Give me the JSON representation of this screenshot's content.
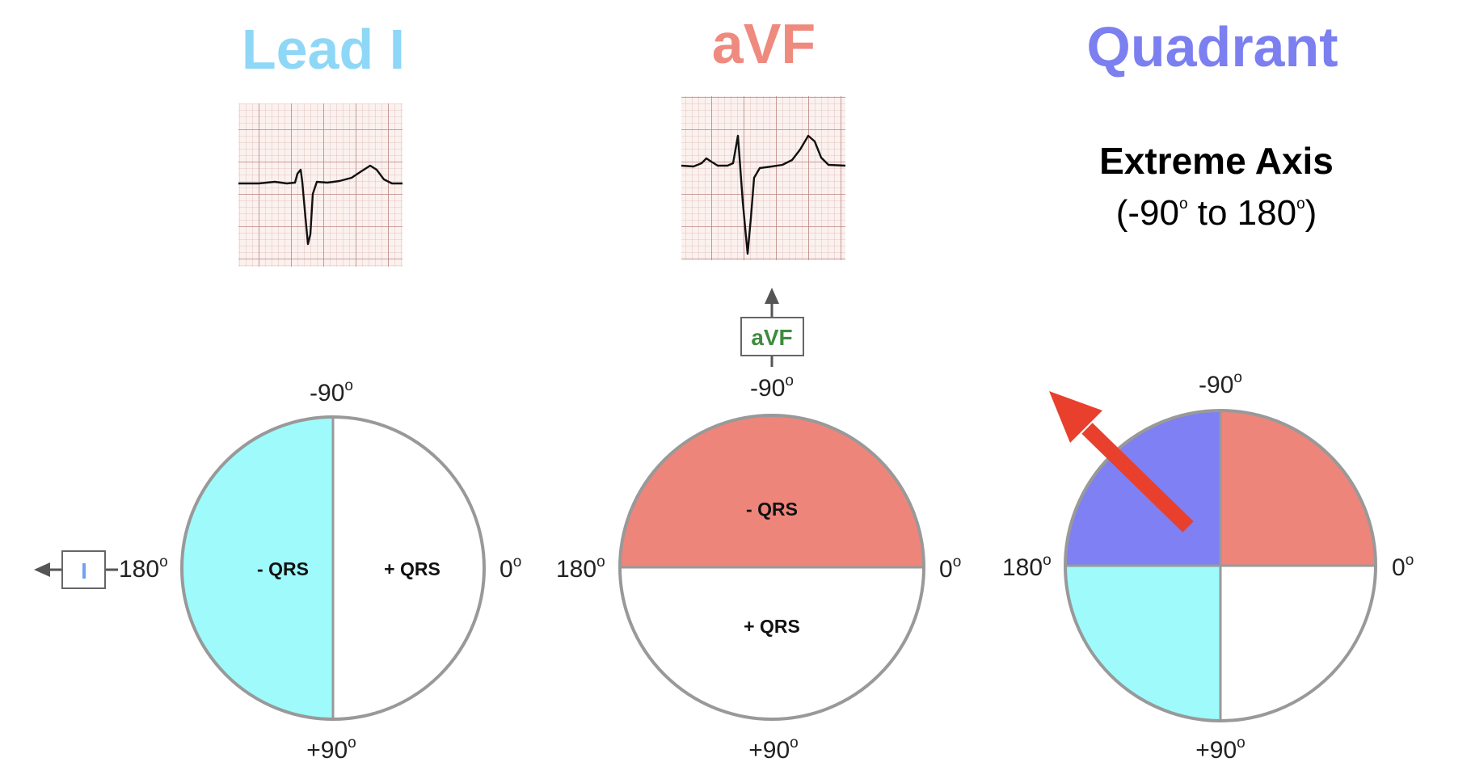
{
  "colors": {
    "lead_i": "#8fd7f7",
    "avf": "#ef8a7f",
    "quadrant": "#7b7ff0",
    "cyan_fill": "#9ffafc",
    "red_fill": "#ee857a",
    "blue_fill": "#7e80f3",
    "arrow_red": "#e8402d",
    "avf_box_text": "#3f8a3f",
    "lead_box_text": "#6fa3f0",
    "ecg_paper": "#fbf1ef",
    "ecg_grid": "#c99a95"
  },
  "panels": {
    "lead_i": {
      "title": "Lead I",
      "box_label": "I",
      "neg_label": "- QRS",
      "pos_label": "+ QRS",
      "top": "-90",
      "bottom": "+90",
      "left": "180",
      "right": "0",
      "deg": "o"
    },
    "avf": {
      "title": "aVF",
      "box_label": "aVF",
      "neg_label": "- QRS",
      "pos_label": "+ QRS",
      "top": "-90",
      "bottom": "+90",
      "left": "180",
      "right": "0",
      "deg": "o"
    },
    "quadrant": {
      "title": "Quadrant",
      "axis_title": "Extreme Axis",
      "axis_range_a": "(-90",
      "axis_range_b": " to 180",
      "axis_range_c": ")",
      "top": "-90",
      "bottom": "+90",
      "left": "180",
      "right": "0",
      "deg": "o"
    }
  }
}
